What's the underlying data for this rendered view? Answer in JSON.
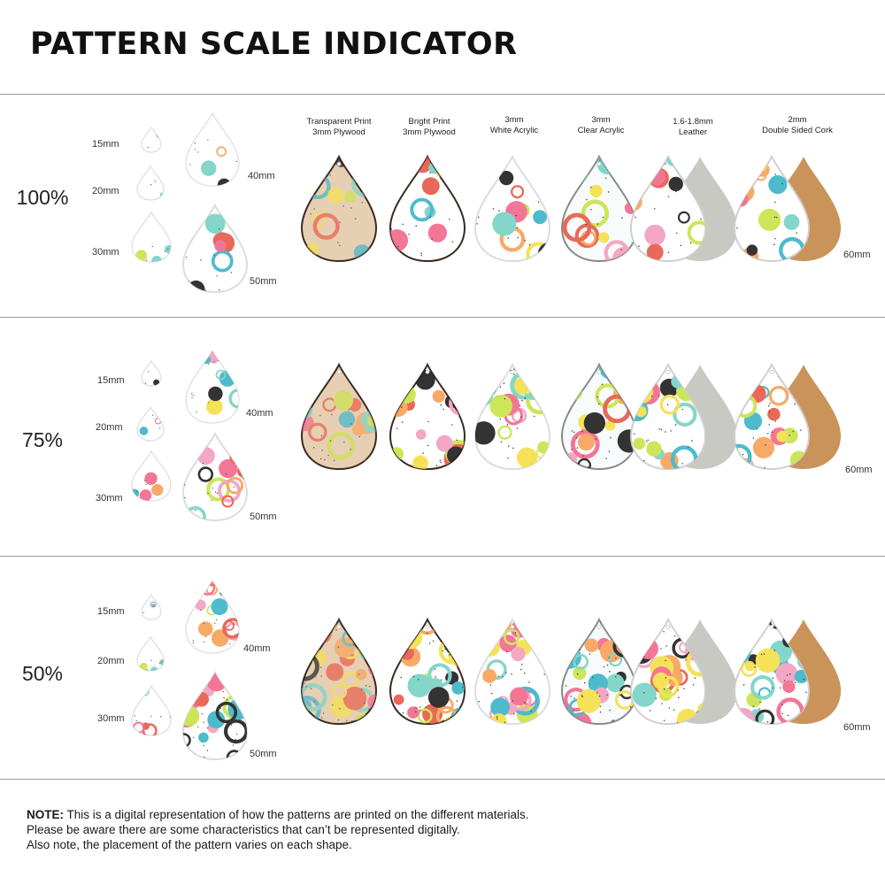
{
  "title": "PATTERN SCALE INDICATOR",
  "materials": [
    {
      "line1": "Transparent Print",
      "line2": "3mm Plywood",
      "base": "#e7cfb4",
      "edge": "#3a2b22",
      "backing": null
    },
    {
      "line1": "Bright Print",
      "line2": "3mm Plywood",
      "base": "#ffffff",
      "edge": "#3a2b22",
      "backing": null
    },
    {
      "line1": "3mm",
      "line2": "White Acrylic",
      "base": "#ffffff",
      "edge": "#dcdcdc",
      "backing": null
    },
    {
      "line1": "3mm",
      "line2": "Clear Acrylic",
      "base": "#f7fbfc",
      "edge": "#8a8a8a",
      "backing": null
    },
    {
      "line1": "1.6-1.8mm",
      "line2": "Leather",
      "base": "#ffffff",
      "edge": "#d0d0d0",
      "backing": "#c9c9c4"
    },
    {
      "line1": "2mm",
      "line2": "Double Sided Cork",
      "base": "#ffffff",
      "edge": "#d0d0d0",
      "backing": "#c9935a"
    }
  ],
  "sections": [
    {
      "scale": "100%",
      "sizes": [
        "15mm",
        "20mm",
        "30mm",
        "40mm",
        "50mm"
      ],
      "large_size": "60mm"
    },
    {
      "scale": "75%",
      "sizes": [
        "15mm",
        "20mm",
        "30mm",
        "40mm",
        "50mm"
      ],
      "large_size": "60mm"
    },
    {
      "scale": "50%",
      "sizes": [
        "15mm",
        "20mm",
        "30mm",
        "40mm",
        "50mm"
      ],
      "large_size": "60mm"
    }
  ],
  "palette": [
    "#3fb6c9",
    "#f26b8f",
    "#f7a35c",
    "#c9e34b",
    "#f5e04a",
    "#222222",
    "#7ad3c6",
    "#f2a0c0",
    "#e85d4a"
  ],
  "note": {
    "label": "NOTE:",
    "line1": " This is a digital representation of how the patterns are printed on the different materials.",
    "line2": "Please be aware there are some characteristics that can’t be represented digitally.",
    "line3": "Also note, the placement of the pattern varies on each shape."
  }
}
